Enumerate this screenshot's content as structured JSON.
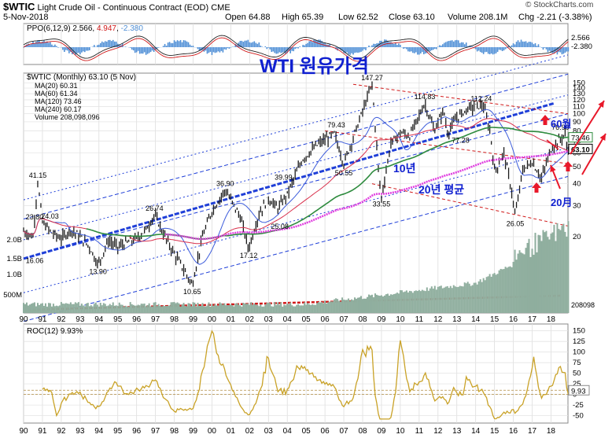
{
  "header": {
    "symbol": "$WTIC",
    "name": "Light Crude Oil - Continuous Contract (EOD)",
    "exchange": "CME",
    "date": "5-Nov-2018",
    "open": "Open 64.88",
    "high": "High 65.39",
    "low": "Low 62.52",
    "close": "Close 63.10",
    "volume": "Volume 208.1M",
    "chg": "Chg -2.21 (-3.38%)",
    "watermark": "© StockCharts.com"
  },
  "colors": {
    "price": "#1a1a1a",
    "ma20": "#3b5bdb",
    "ma60": "#d9304c",
    "ma120": "#2e8b3e",
    "ma240": "#e040e0",
    "volume": "#8fae9e",
    "ppo_hist": "#4f8fd6",
    "roc": "#c9a227",
    "channel_blue": "#1f3fd8",
    "channel_red": "#d01818",
    "arrow_red": "#e8182a",
    "annot_blue": "#1020d0"
  },
  "ppo_panel": {
    "label": "PPO(6,12,9)",
    "value1": "2.566",
    "value2": "4.947",
    "value3": "-2.380",
    "axis_labels": [
      "2.566",
      "-2.380"
    ]
  },
  "price_panel": {
    "title_ticker": "$WTIC (Monthly) 63.10 (5 Nov)",
    "legend": [
      {
        "label": "MA(20) 60.31"
      },
      {
        "label": "MA(60) 61.34"
      },
      {
        "label": "MA(120) 73.46"
      },
      {
        "label": "MA(240) 60.17"
      },
      {
        "label": "Volume 208,098,096"
      }
    ],
    "y_ticks": [
      "150",
      "140",
      "130",
      "120",
      "110",
      "100",
      "90",
      "80",
      "70",
      "60",
      "50",
      "40",
      "30",
      "20"
    ],
    "value_tags": [
      "73.46",
      "63.10"
    ],
    "vol_ticks": [
      "2.0B",
      "1.5B",
      "1.0B",
      "500M"
    ],
    "vol_tag": "208098",
    "annotations": {
      "title": "WTI 원유가격",
      "ten_year": "10년",
      "twenty_year_avg": "20년 평균",
      "sixty_month": "60월",
      "twenty_month": "20月"
    },
    "price_labels": [
      "147.27",
      "114.83",
      "112.24",
      "79.43",
      "77.28",
      "76.90",
      "50.55",
      "41.15",
      "39.99",
      "36.90",
      "33.55",
      "26.74",
      "26.05",
      "25.08",
      "24.03",
      "23.80",
      "17.12",
      "16.06",
      "13.90",
      "10.65"
    ]
  },
  "roc_panel": {
    "label": "ROC(12) 9.93%",
    "y_ticks": [
      "150",
      "125",
      "100",
      "75",
      "50",
      "25",
      "0",
      "-25",
      "-50"
    ],
    "value_tag": "9.93"
  },
  "x_axis": {
    "labels": [
      "90",
      "91",
      "92",
      "93",
      "94",
      "95",
      "96",
      "97",
      "98",
      "99",
      "00",
      "01",
      "02",
      "03",
      "04",
      "05",
      "06",
      "07",
      "08",
      "09",
      "10",
      "11",
      "12",
      "13",
      "14",
      "15",
      "16",
      "17",
      "18"
    ]
  },
  "chart_data": {
    "type": "line",
    "title": "$WTIC (Monthly)",
    "scale": "log",
    "ylim": [
      8,
      160
    ],
    "x_range": [
      1990,
      2018.9
    ],
    "grid": true,
    "series": [
      {
        "name": "$WTIC",
        "points": [
          [
            1990.0,
            21.5
          ],
          [
            1990.5,
            20.0
          ],
          [
            1990.75,
            41.15
          ],
          [
            1991.0,
            24.0
          ],
          [
            1991.5,
            21.0
          ],
          [
            1992.0,
            19.5
          ],
          [
            1992.5,
            22.0
          ],
          [
            1993.0,
            20.0
          ],
          [
            1993.5,
            17.5
          ],
          [
            1993.95,
            13.9
          ],
          [
            1994.5,
            19.0
          ],
          [
            1995.0,
            17.5
          ],
          [
            1995.5,
            18.5
          ],
          [
            1996.0,
            19.5
          ],
          [
            1996.5,
            22.0
          ],
          [
            1996.95,
            26.74
          ],
          [
            1997.5,
            20.0
          ],
          [
            1998.0,
            16.0
          ],
          [
            1998.5,
            13.0
          ],
          [
            1998.95,
            10.65
          ],
          [
            1999.5,
            20.0
          ],
          [
            2000.0,
            28.0
          ],
          [
            2000.7,
            36.9
          ],
          [
            2001.5,
            26.0
          ],
          [
            2001.95,
            17.12
          ],
          [
            2002.5,
            27.0
          ],
          [
            2003.0,
            33.0
          ],
          [
            2003.5,
            29.0
          ],
          [
            2004.0,
            35.0
          ],
          [
            2004.8,
            55.0
          ],
          [
            2005.7,
            68.0
          ],
          [
            2006.5,
            77.0
          ],
          [
            2007.0,
            52.0
          ],
          [
            2007.8,
            90.0
          ],
          [
            2008.5,
            147.27
          ],
          [
            2008.9,
            40.0
          ],
          [
            2009.0,
            33.55
          ],
          [
            2009.5,
            68.0
          ],
          [
            2010.0,
            78.0
          ],
          [
            2010.5,
            75.0
          ],
          [
            2011.3,
            114.83
          ],
          [
            2011.8,
            80.0
          ],
          [
            2012.3,
            105.0
          ],
          [
            2012.5,
            78.0
          ],
          [
            2013.0,
            95.0
          ],
          [
            2013.6,
            108.0
          ],
          [
            2014.4,
            112.24
          ],
          [
            2014.8,
            76.0
          ],
          [
            2015.0,
            47.0
          ],
          [
            2015.5,
            60.0
          ],
          [
            2015.9,
            37.0
          ],
          [
            2016.1,
            26.05
          ],
          [
            2016.5,
            48.0
          ],
          [
            2017.0,
            53.0
          ],
          [
            2017.5,
            43.0
          ],
          [
            2018.0,
            63.0
          ],
          [
            2018.75,
            76.9
          ],
          [
            2018.85,
            63.1
          ]
        ]
      },
      {
        "name": "MA(20)",
        "value": 60.31
      },
      {
        "name": "MA(60)",
        "value": 61.34
      },
      {
        "name": "MA(120)",
        "value": 73.46
      },
      {
        "name": "MA(240)",
        "value": 60.17
      }
    ]
  }
}
